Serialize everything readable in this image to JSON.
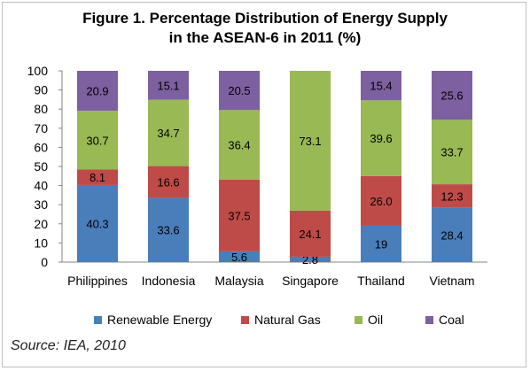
{
  "title_line1": "Figure 1. Percentage Distribution of Energy Supply",
  "title_line2": "in the ASEAN-6 in 2011 (%)",
  "source": "Source: IEA, 2010",
  "chart_data": {
    "type": "bar",
    "stacked": true,
    "categories": [
      "Philippines",
      "Indonesia",
      "Malaysia",
      "Singapore",
      "Thailand",
      "Vietnam"
    ],
    "series": [
      {
        "name": "Renewable Energy",
        "color": "#4a7ebb",
        "values": [
          40.3,
          33.6,
          5.6,
          2.8,
          19,
          28.4
        ],
        "labels": [
          "40.3",
          "33.6",
          "5.6",
          "2.8",
          "19",
          "28.4"
        ]
      },
      {
        "name": "Natural Gas",
        "color": "#be4b48",
        "values": [
          8.1,
          16.6,
          37.5,
          24.1,
          26.0,
          12.3
        ],
        "labels": [
          "8.1",
          "16.6",
          "37.5",
          "24.1",
          "26.0",
          "12.3"
        ]
      },
      {
        "name": "Oil",
        "color": "#98b954",
        "values": [
          30.7,
          34.7,
          36.4,
          73.1,
          39.6,
          33.7
        ],
        "labels": [
          "30.7",
          "34.7",
          "36.4",
          "73.1",
          "39.6",
          "33.7"
        ]
      },
      {
        "name": "Coal",
        "color": "#7d60a0",
        "values": [
          20.9,
          15.1,
          20.5,
          null,
          15.4,
          25.6
        ],
        "labels": [
          "20.9",
          "15.1",
          "20.5",
          "",
          "15.4",
          "25.6"
        ]
      }
    ],
    "ylim": [
      0,
      100
    ],
    "yticks": [
      "0",
      "10",
      "20",
      "30",
      "40",
      "50",
      "60",
      "70",
      "80",
      "90",
      "100"
    ],
    "legend_position": "bottom",
    "grid": false
  }
}
